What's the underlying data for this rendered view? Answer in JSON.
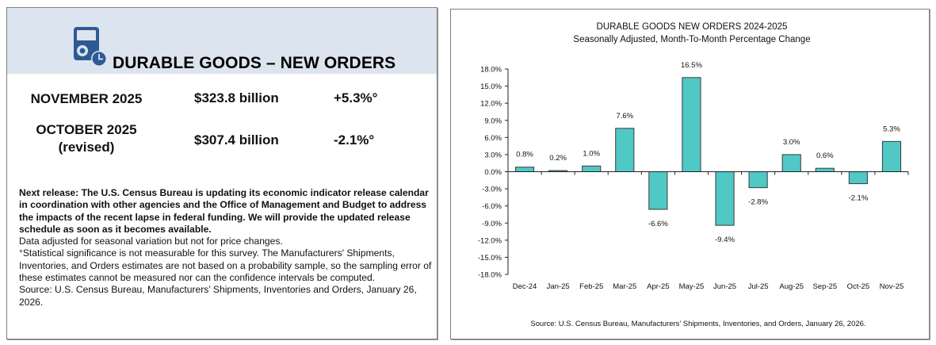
{
  "left_panel": {
    "header": {
      "icon": "durable-goods-clock-icon",
      "title": "DURABLE GOODS – NEW ORDERS",
      "accent_color": "#2e5a94",
      "background_color": "#dce4ef"
    },
    "rows": [
      {
        "period": "NOVEMBER 2025",
        "period_sub": "",
        "amount": "$323.8 billion",
        "change": "+5.3%°"
      },
      {
        "period": "OCTOBER 2025",
        "period_sub": "(revised)",
        "amount": "$307.4 billion",
        "change": "-2.1%°"
      }
    ],
    "notes": {
      "next_release": "Next release:  The U.S. Census Bureau is updating its economic indicator release calendar in coordination with other agencies and the Office of Management and Budget to address the impacts of the recent lapse in federal funding.  We will provide the updated release schedule as soon as it becomes available.",
      "adjustment": "Data adjusted for seasonal variation but not for price changes.",
      "significance": "°Statistical significance is not measurable for this survey.  The Manufacturers' Shipments, Inventories, and Orders estimates are not based on a probability sample, so the sampling error of these estimates cannot be measured nor can the confidence intervals be computed.",
      "source": "Source: U.S. Census Bureau, Manufacturers’ Shipments, Inventories and Orders, January 26, 2026."
    }
  },
  "chart_data": {
    "type": "bar",
    "title": "DURABLE GOODS NEW ORDERS 2024-2025",
    "subtitle": "Seasonally Adjusted,  Month-To-Month Percentage Change",
    "xlabel": "",
    "ylabel": "",
    "categories": [
      "Dec-24",
      "Jan-25",
      "Feb-25",
      "Mar-25",
      "Apr-25",
      "May-25",
      "Jun-25",
      "Jul-25",
      "Aug-25",
      "Sep-25",
      "Oct-25",
      "Nov-25"
    ],
    "values": [
      0.8,
      0.2,
      1.0,
      7.6,
      -6.6,
      16.5,
      -9.4,
      -2.8,
      3.0,
      0.6,
      -2.1,
      5.3
    ],
    "data_labels": [
      "0.8%",
      "0.2%",
      "1.0%",
      "7.6%",
      "-6.6%",
      "16.5%",
      "-9.4%",
      "-2.8%",
      "3.0%",
      "0.6%",
      "-2.1%",
      "5.3%"
    ],
    "ylim": [
      -18,
      18
    ],
    "yticks": [
      18,
      15,
      12,
      9,
      6,
      3,
      0,
      -3,
      -6,
      -9,
      -12,
      -15,
      -18
    ],
    "ytick_labels": [
      "18.0%",
      "15.0%",
      "12.0%",
      "9.0%",
      "6.0%",
      "3.0%",
      "0.0%",
      "-3.0%",
      "-6.0%",
      "-9.0%",
      "-12.0%",
      "-15.0%",
      "-18.0%"
    ],
    "grid": false,
    "legend": "none",
    "bar_color": "#4fc8c6",
    "bar_edge_color": "#3a3a3a",
    "source": "Source: U.S. Census Bureau, Manufacturers’ Shipments, Inventories, and Orders, January 26, 2026."
  }
}
